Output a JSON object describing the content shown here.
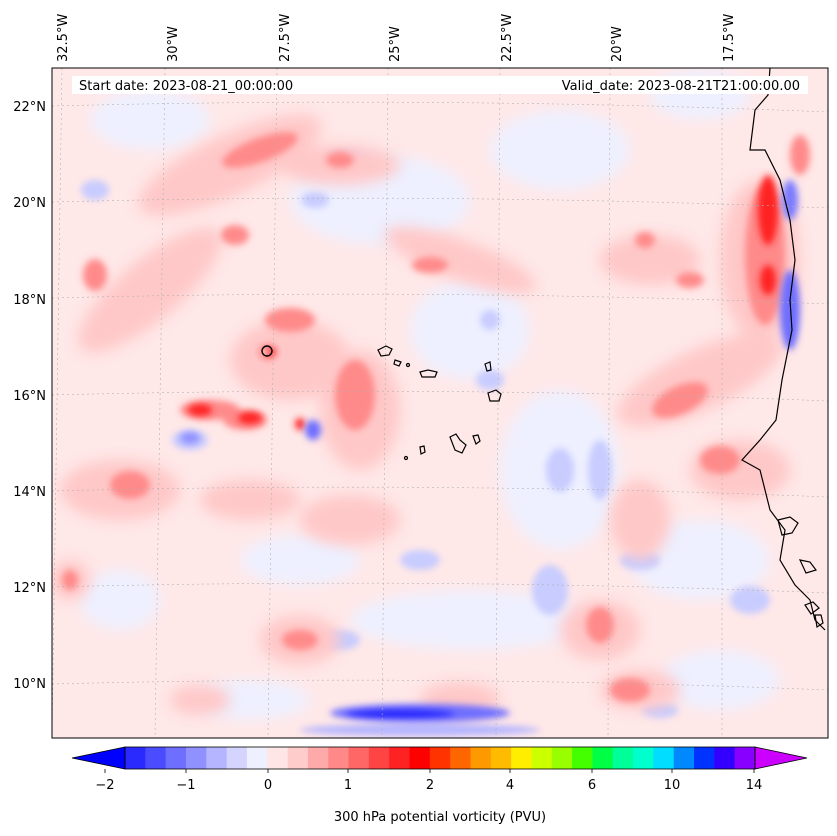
{
  "header": {
    "start_date": "Start date: 2023-08-21_00:00:00",
    "valid_date": "Valid_date: 2023-08-21T21:00:00.00"
  },
  "map": {
    "lon_labels": [
      "32.5°W",
      "30°W",
      "27.5°W",
      "25°W",
      "22.5°W",
      "20°W",
      "17.5°W"
    ],
    "lat_labels": [
      "22°N",
      "20°N",
      "18°N",
      "16°N",
      "14°N",
      "12°N",
      "10°N"
    ],
    "field_colors": {
      "deep_blue": "#1a1aff",
      "mid_blue": "#8c8cff",
      "light_blue": "#d6d6ff",
      "very_light_blue": "#eef0ff",
      "very_light_red": "#ffe8e8",
      "light_red": "#ffc8c8",
      "mid_red": "#ff9a9a",
      "red": "#ff5a5a",
      "deep_red": "#ff1a1a",
      "coastline": "#000000"
    }
  },
  "colorbar": {
    "tick_labels": [
      "−2",
      "−1",
      "0",
      "1",
      "2",
      "4",
      "6",
      "10",
      "14"
    ],
    "label": "300 hPa potential vorticity (PVU)",
    "colors": [
      "#0000ff",
      "#2a2aff",
      "#4c4cff",
      "#6e6eff",
      "#9090ff",
      "#b4b4ff",
      "#d4d4ff",
      "#eef0ff",
      "#ffe6e6",
      "#ffcccc",
      "#ffaaaa",
      "#ff8888",
      "#ff6666",
      "#ff4444",
      "#ff2222",
      "#ff0000",
      "#ff3300",
      "#ff6600",
      "#ff9900",
      "#ffbb00",
      "#ffee00",
      "#ccff00",
      "#99ff00",
      "#44ff00",
      "#00ff44",
      "#00ff99",
      "#00ffcc",
      "#00ddff",
      "#0088ff",
      "#0033ff",
      "#3300ff",
      "#8800ff",
      "#cc00ff"
    ]
  }
}
